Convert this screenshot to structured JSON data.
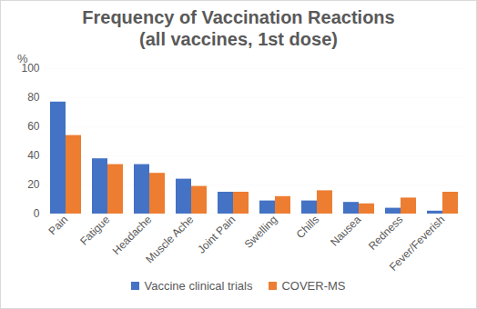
{
  "chart_data": {
    "type": "bar",
    "title": "Frequency of Vaccination Reactions",
    "subtitle": "(all vaccines, 1st dose)",
    "y_label": "%",
    "categories": [
      "Pain",
      "Fatigue",
      "Headache",
      "Muscle Ache",
      "Joint Pain",
      "Swelling",
      "Chills",
      "Nausea",
      "Redness",
      "Fever/Feverish"
    ],
    "series": [
      {
        "name": "Vaccine clinical trials",
        "color": "#4472c4",
        "values": [
          77,
          38,
          34,
          24,
          15,
          9,
          9,
          8,
          4,
          2
        ]
      },
      {
        "name": "COVER-MS",
        "color": "#ed7d31",
        "values": [
          54,
          34,
          28,
          19,
          15,
          12,
          16,
          7,
          11,
          15
        ]
      }
    ],
    "ylim": [
      0,
      100
    ],
    "yticks": [
      0,
      20,
      40,
      60,
      80,
      100
    ],
    "grid": true,
    "legend": "bottom"
  }
}
